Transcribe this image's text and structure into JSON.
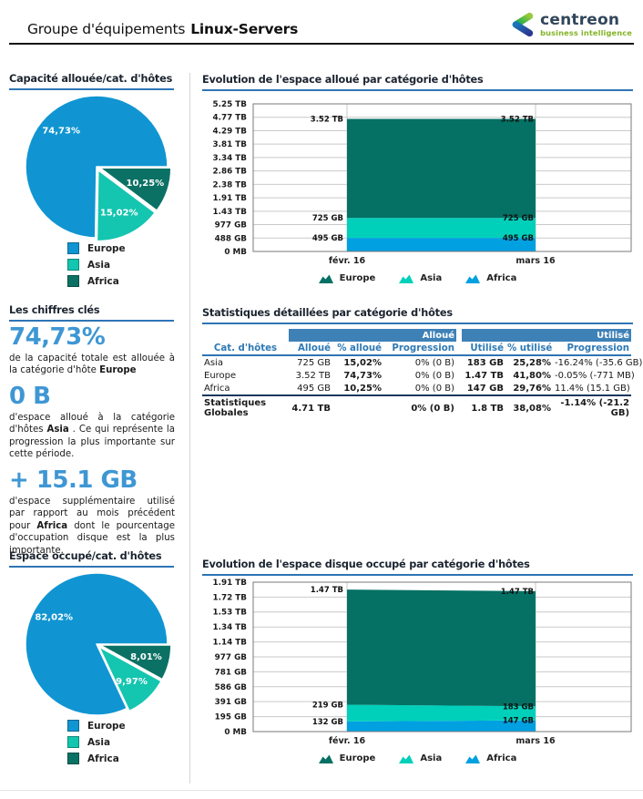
{
  "header": {
    "title_prefix": "Groupe d'équipements",
    "title_bold": "Linux-Servers",
    "logo_name": "centreon",
    "logo_tagline": "business intelligence"
  },
  "colors": {
    "accent_underline": "#2e74b5",
    "table_header_bg": "#3e81b7",
    "table_header_text": "#2e79b5",
    "kpi_blue": "#3e97d4",
    "pie_europe": "#1095d2",
    "pie_asia": "#14c5b0",
    "pie_africa": "#0b7164",
    "area_europe": "#047164",
    "area_asia": "#00d0ba",
    "area_africa": "#00a0e1"
  },
  "sections": {
    "pie_allocated_title": "Capacité allouée/cat. d'hôtes",
    "key_figures_title": "Les chiffres clés",
    "pie_used_title": "Espace occupé/cat. d'hôtes",
    "area_allocated_title": "Evolution de l'espace alloué par catégorie d'hôtes",
    "table_title": "Statistiques détaillées par catégorie d'hôtes",
    "area_used_title": "Evolution de l'espace disque occupé par catégorie d'hôtes"
  },
  "left": {
    "key_figures": [
      {
        "value": "74,73%",
        "before": "de la capacité totale est allouée à la catégorie d'hôte ",
        "bold": "Europe",
        "after": ""
      },
      {
        "value": "0 B",
        "before": "d'espace alloué à la catégorie d'hôtes ",
        "bold": "Asia",
        "after": " . Ce qui représente la progression la plus importante sur cette période."
      },
      {
        "value": "+ 15.1 GB",
        "before": "d'espace supplémentaire utilisé par rapport au mois précédent pour ",
        "bold": "Africa",
        "after": " dont le pourcentage d'occupation disque est la plus importante."
      }
    ]
  },
  "table": {
    "group_headers": [
      "Alloué",
      "Utilisé"
    ],
    "columns": [
      "Cat. d'hôtes",
      "Alloué",
      "% alloué",
      "Progression",
      "Utilisé",
      "% utilisé",
      "Progression"
    ],
    "rows": [
      [
        "Asia",
        "725 GB",
        "15,02%",
        "0% (0 B)",
        "183 GB",
        "25,28%",
        "-16.24% (-35.6 GB)"
      ],
      [
        "Europe",
        "3.52 TB",
        "74,73%",
        "0% (0 B)",
        "1.47 TB",
        "41,80%",
        "-0.05% (-771 MB)"
      ],
      [
        "Africa",
        "495 GB",
        "10,25%",
        "0% (0 B)",
        "147 GB",
        "29,76%",
        "11.4% (15.1 GB)"
      ]
    ],
    "total_row": [
      "Statistiques Globales",
      "4.71 TB",
      "",
      "0% (0 B)",
      "1.8 TB",
      "38,08%",
      "-1.14% (-21.2 GB)"
    ]
  },
  "chart_data": [
    {
      "id": "pie_allocated",
      "type": "pie",
      "title": "Capacité allouée/cat. d'hôtes",
      "start_angle_deg": 90,
      "slices": [
        {
          "name": "Africa",
          "pct": 10.25,
          "label": "10,25%",
          "color": "#0b7164",
          "explode": true
        },
        {
          "name": "Asia",
          "pct": 15.02,
          "label": "15,02%",
          "color": "#14c5b0",
          "explode": true
        },
        {
          "name": "Europe",
          "pct": 74.73,
          "label": "74,73%",
          "color": "#1095d2",
          "explode": false
        }
      ],
      "legend": [
        {
          "name": "Europe",
          "color": "#1095d2"
        },
        {
          "name": "Asia",
          "color": "#14c5b0"
        },
        {
          "name": "Africa",
          "color": "#0b7164"
        }
      ]
    },
    {
      "id": "area_allocated",
      "type": "area",
      "title": "Evolution de l'espace alloué par catégorie d'hôtes",
      "x_labels": [
        "févr. 16",
        "mars 16"
      ],
      "ymax_gb": 5371,
      "y_ticks": [
        {
          "gb": 0,
          "label": "0 MB"
        },
        {
          "gb": 488,
          "label": "488 GB"
        },
        {
          "gb": 977,
          "label": "977 GB"
        },
        {
          "gb": 1465,
          "label": "1.43 TB"
        },
        {
          "gb": 1953,
          "label": "1.91 TB"
        },
        {
          "gb": 2441,
          "label": "2.38 TB"
        },
        {
          "gb": 2930,
          "label": "2.86 TB"
        },
        {
          "gb": 3418,
          "label": "3.34 TB"
        },
        {
          "gb": 3906,
          "label": "3.81 TB"
        },
        {
          "gb": 4395,
          "label": "4.29 TB"
        },
        {
          "gb": 4883,
          "label": "4.77 TB"
        },
        {
          "gb": 5371,
          "label": "5.25 TB"
        }
      ],
      "series_bottom_to_top": [
        {
          "name": "Africa",
          "color": "#00a0e1",
          "values_gb": [
            495,
            495
          ],
          "point_labels": [
            "495 GB",
            "495 GB"
          ]
        },
        {
          "name": "Asia",
          "color": "#00d0ba",
          "values_gb": [
            725,
            725
          ],
          "point_labels": [
            "725 GB",
            "725 GB"
          ]
        },
        {
          "name": "Europe",
          "color": "#047164",
          "values_gb": [
            3604,
            3604
          ],
          "point_labels": [
            "3.52 TB",
            "3.52 TB"
          ]
        }
      ],
      "legend": [
        {
          "name": "Europe",
          "color": "#047164"
        },
        {
          "name": "Asia",
          "color": "#00d0ba"
        },
        {
          "name": "Africa",
          "color": "#00a0e1"
        }
      ]
    },
    {
      "id": "pie_used",
      "type": "pie",
      "title": "Espace occupé/cat. d'hôtes",
      "start_angle_deg": 90,
      "slices": [
        {
          "name": "Africa",
          "pct": 8.01,
          "label": "8,01%",
          "color": "#0b7164",
          "explode": true
        },
        {
          "name": "Asia",
          "pct": 9.97,
          "label": "9,97%",
          "color": "#14c5b0",
          "explode": true
        },
        {
          "name": "Europe",
          "pct": 82.02,
          "label": "82,02%",
          "color": "#1095d2",
          "explode": false
        }
      ],
      "legend": [
        {
          "name": "Europe",
          "color": "#1095d2"
        },
        {
          "name": "Asia",
          "color": "#14c5b0"
        },
        {
          "name": "Africa",
          "color": "#0b7164"
        }
      ]
    },
    {
      "id": "area_used",
      "type": "area",
      "title": "Evolution de l'espace disque occupé par catégorie d'hôtes",
      "x_labels": [
        "févr. 16",
        "mars 16"
      ],
      "ymax_gb": 1953,
      "y_ticks": [
        {
          "gb": 0,
          "label": "0 MB"
        },
        {
          "gb": 195,
          "label": "195 GB"
        },
        {
          "gb": 391,
          "label": "391 GB"
        },
        {
          "gb": 586,
          "label": "586 GB"
        },
        {
          "gb": 781,
          "label": "781 GB"
        },
        {
          "gb": 977,
          "label": "977 GB"
        },
        {
          "gb": 1172,
          "label": "1.14 TB"
        },
        {
          "gb": 1367,
          "label": "1.34 TB"
        },
        {
          "gb": 1563,
          "label": "1.53 TB"
        },
        {
          "gb": 1758,
          "label": "1.72 TB"
        },
        {
          "gb": 1953,
          "label": "1.91 TB"
        }
      ],
      "series_bottom_to_top": [
        {
          "name": "Africa",
          "color": "#00a0e1",
          "values_gb": [
            132,
            147
          ],
          "point_labels": [
            "132 GB",
            "147 GB"
          ]
        },
        {
          "name": "Asia",
          "color": "#00d0ba",
          "values_gb": [
            219,
            183
          ],
          "point_labels": [
            "219 GB",
            "183 GB"
          ]
        },
        {
          "name": "Europe",
          "color": "#047164",
          "values_gb": [
            1505,
            1505
          ],
          "point_labels": [
            "1.47 TB",
            "1.47 TB"
          ]
        }
      ],
      "legend": [
        {
          "name": "Europe",
          "color": "#047164"
        },
        {
          "name": "Asia",
          "color": "#00d0ba"
        },
        {
          "name": "Africa",
          "color": "#00a0e1"
        }
      ]
    }
  ]
}
